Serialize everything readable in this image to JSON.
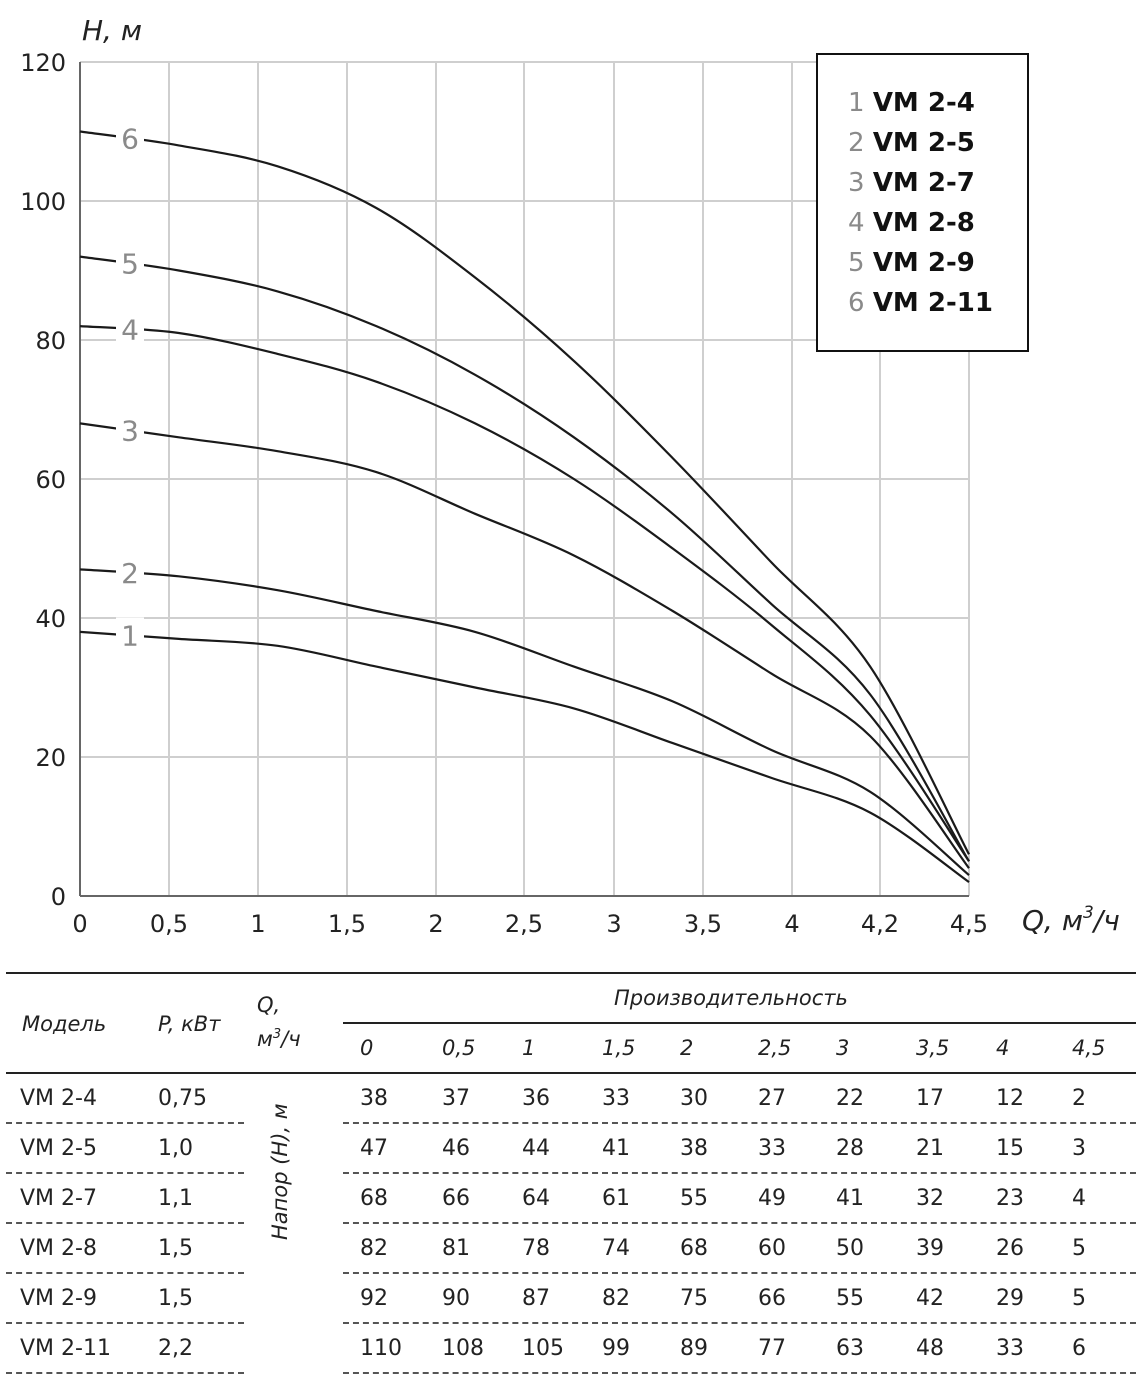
{
  "chart_data": {
    "type": "line",
    "ylabel": "H, м",
    "xlabel_main": "Q, м",
    "xlabel_sup": "3",
    "xlabel_tail": "/ч",
    "x": [
      0,
      0.5,
      1,
      1.5,
      2,
      2.5,
      3,
      3.5,
      4,
      4.5
    ],
    "x_ticks": [
      "0",
      "0,5",
      "1",
      "1,5",
      "2",
      "2,5",
      "3",
      "3,5",
      "4",
      "4,2",
      "4,5"
    ],
    "y_ticks": [
      "0",
      "20",
      "40",
      "60",
      "80",
      "100",
      "120"
    ],
    "ylim": [
      0,
      120
    ],
    "grid": true,
    "legend_position": "top-right",
    "series": [
      {
        "num": "1",
        "name": "VM 2-4",
        "values": [
          38,
          37,
          36,
          33,
          30,
          27,
          22,
          17,
          12,
          2
        ]
      },
      {
        "num": "2",
        "name": "VM 2-5",
        "values": [
          47,
          46,
          44,
          41,
          38,
          33,
          28,
          21,
          15,
          3
        ]
      },
      {
        "num": "3",
        "name": "VM 2-7",
        "values": [
          68,
          66,
          64,
          61,
          55,
          49,
          41,
          32,
          23,
          4
        ]
      },
      {
        "num": "4",
        "name": "VM 2-8",
        "values": [
          82,
          81,
          78,
          74,
          68,
          60,
          50,
          39,
          26,
          5
        ]
      },
      {
        "num": "5",
        "name": "VM 2-9",
        "values": [
          92,
          90,
          87,
          82,
          75,
          66,
          55,
          42,
          29,
          5
        ]
      },
      {
        "num": "6",
        "name": "VM 2-11",
        "values": [
          110,
          108,
          105,
          99,
          89,
          77,
          63,
          48,
          33,
          6
        ]
      }
    ]
  },
  "table": {
    "header_model": "Модель",
    "header_power": "P, кВт",
    "header_q_main": "Q,",
    "header_q_unit": "м",
    "header_q_sup": "3",
    "header_q_tail": "/ч",
    "header_performance": "Производительность",
    "head_label": "Напор (H), м",
    "q_values": [
      "0",
      "0,5",
      "1",
      "1,5",
      "2",
      "2,5",
      "3",
      "3,5",
      "4",
      "4,5"
    ],
    "rows": [
      {
        "model": "VM 2-4",
        "power": "0,75",
        "h": [
          "38",
          "37",
          "36",
          "33",
          "30",
          "27",
          "22",
          "17",
          "12",
          "2"
        ]
      },
      {
        "model": "VM 2-5",
        "power": "1,0",
        "h": [
          "47",
          "46",
          "44",
          "41",
          "38",
          "33",
          "28",
          "21",
          "15",
          "3"
        ]
      },
      {
        "model": "VM 2-7",
        "power": "1,1",
        "h": [
          "68",
          "66",
          "64",
          "61",
          "55",
          "49",
          "41",
          "32",
          "23",
          "4"
        ]
      },
      {
        "model": "VM 2-8",
        "power": "1,5",
        "h": [
          "82",
          "81",
          "78",
          "74",
          "68",
          "60",
          "50",
          "39",
          "26",
          "5"
        ]
      },
      {
        "model": "VM 2-9",
        "power": "1,5",
        "h": [
          "92",
          "90",
          "87",
          "82",
          "75",
          "66",
          "55",
          "42",
          "29",
          "5"
        ]
      },
      {
        "model": "VM 2-11",
        "power": "2,2",
        "h": [
          "110",
          "108",
          "105",
          "99",
          "89",
          "77",
          "63",
          "48",
          "33",
          "6"
        ]
      }
    ]
  }
}
